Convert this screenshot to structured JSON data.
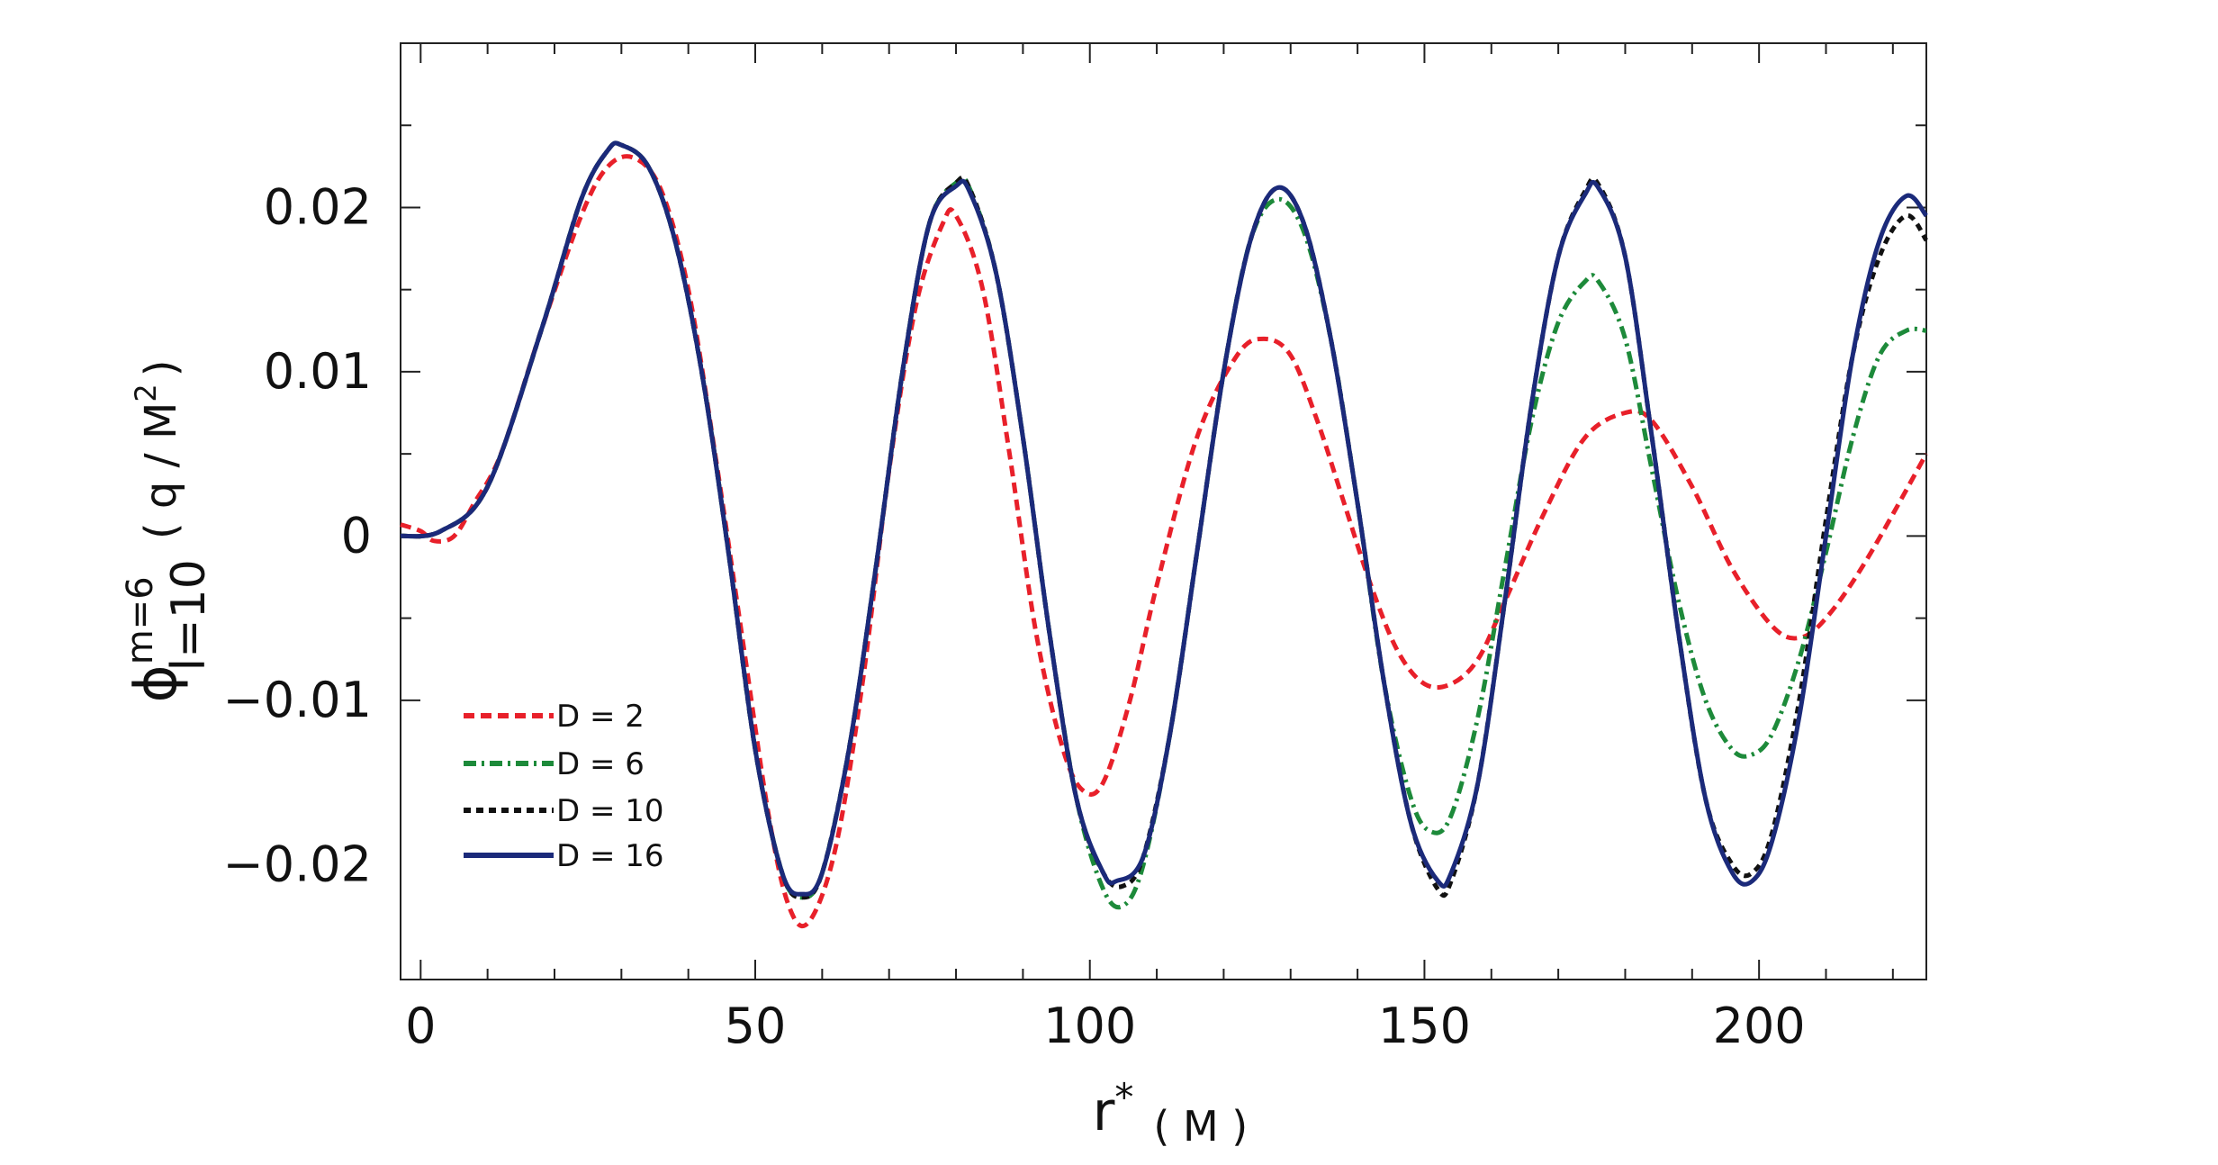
{
  "chart_data": {
    "type": "line",
    "xlim": [
      -3,
      225
    ],
    "ylim": [
      -0.027,
      0.03
    ],
    "x_ticks": [
      0,
      50,
      100,
      150,
      200
    ],
    "x_tick_labels": [
      "0",
      "50",
      "100",
      "150",
      "200"
    ],
    "y_ticks": [
      0.02,
      0.01,
      0,
      -0.01,
      -0.02
    ],
    "y_tick_labels": [
      "0.02",
      "0.01",
      "0",
      "−0.01",
      "−0.02"
    ],
    "xlabel": {
      "main": "r",
      "sup": "*",
      "unit": "( M )"
    },
    "ylabel": {
      "symbol": "ϕ",
      "sup": "m=6",
      "sub": "l=10",
      "unit": "( q / M",
      "unit_sup": "2",
      "unit_close": ")"
    },
    "grid": false,
    "legend": "bottom-left",
    "series": [
      {
        "name": "D = 2",
        "color": "#e8202a",
        "style": "dashed",
        "points": [
          [
            -3,
            0.0007
          ],
          [
            0,
            0.0003
          ],
          [
            2,
            -0.0003
          ],
          [
            5,
            0.0
          ],
          [
            8,
            0.002
          ],
          [
            12,
            0.005
          ],
          [
            18,
            0.0125
          ],
          [
            24,
            0.0195
          ],
          [
            28,
            0.0225
          ],
          [
            32,
            0.023
          ],
          [
            36,
            0.021
          ],
          [
            40,
            0.015
          ],
          [
            44,
            0.005
          ],
          [
            48,
            -0.006
          ],
          [
            52,
            -0.017
          ],
          [
            55,
            -0.0225
          ],
          [
            58,
            -0.0235
          ],
          [
            62,
            -0.019
          ],
          [
            66,
            -0.009
          ],
          [
            70,
            0.004
          ],
          [
            74,
            0.014
          ],
          [
            78,
            0.019
          ],
          [
            80,
            0.0195
          ],
          [
            84,
            0.015
          ],
          [
            88,
            0.005
          ],
          [
            92,
            -0.006
          ],
          [
            96,
            -0.013
          ],
          [
            99,
            -0.0155
          ],
          [
            102,
            -0.015
          ],
          [
            106,
            -0.01
          ],
          [
            110,
            -0.003
          ],
          [
            116,
            0.006
          ],
          [
            122,
            0.011
          ],
          [
            126,
            0.012
          ],
          [
            130,
            0.011
          ],
          [
            134,
            0.007
          ],
          [
            138,
            0.002
          ],
          [
            142,
            -0.003
          ],
          [
            146,
            -0.007
          ],
          [
            150,
            -0.009
          ],
          [
            154,
            -0.009
          ],
          [
            158,
            -0.0075
          ],
          [
            162,
            -0.004
          ],
          [
            168,
            0.0015
          ],
          [
            174,
            0.006
          ],
          [
            180,
            0.0075
          ],
          [
            184,
            0.007
          ],
          [
            190,
            0.003
          ],
          [
            196,
            -0.002
          ],
          [
            202,
            -0.0055
          ],
          [
            206,
            -0.0062
          ],
          [
            210,
            -0.005
          ],
          [
            216,
            -0.0015
          ],
          [
            225,
            0.005
          ]
        ]
      },
      {
        "name": "D = 6",
        "color": "#1d8a3a",
        "style": "dashdot",
        "points": [
          [
            -3,
            0.0
          ],
          [
            3,
            0.0003
          ],
          [
            10,
            0.003
          ],
          [
            18,
            0.0125
          ],
          [
            24,
            0.0205
          ],
          [
            28,
            0.0235
          ],
          [
            30,
            0.0238
          ],
          [
            34,
            0.0225
          ],
          [
            38,
            0.018
          ],
          [
            42,
            0.01
          ],
          [
            46,
            -0.001
          ],
          [
            50,
            -0.013
          ],
          [
            54,
            -0.0205
          ],
          [
            57,
            -0.022
          ],
          [
            60,
            -0.0205
          ],
          [
            64,
            -0.013
          ],
          [
            68,
            -0.002
          ],
          [
            72,
            0.01
          ],
          [
            76,
            0.019
          ],
          [
            80,
            0.0215
          ],
          [
            82,
            0.0212
          ],
          [
            86,
            0.016
          ],
          [
            90,
            0.006
          ],
          [
            94,
            -0.006
          ],
          [
            98,
            -0.016
          ],
          [
            102,
            -0.0215
          ],
          [
            105,
            -0.0225
          ],
          [
            108,
            -0.02
          ],
          [
            112,
            -0.012
          ],
          [
            116,
            -0.001
          ],
          [
            120,
            0.01
          ],
          [
            124,
            0.018
          ],
          [
            128,
            0.0205
          ],
          [
            132,
            0.0185
          ],
          [
            136,
            0.012
          ],
          [
            140,
            0.002
          ],
          [
            144,
            -0.009
          ],
          [
            148,
            -0.016
          ],
          [
            151,
            -0.018
          ],
          [
            154,
            -0.017
          ],
          [
            158,
            -0.011
          ],
          [
            162,
            -0.002
          ],
          [
            166,
            0.007
          ],
          [
            170,
            0.013
          ],
          [
            174,
            0.0155
          ],
          [
            176,
            0.0155
          ],
          [
            180,
            0.012
          ],
          [
            184,
            0.004
          ],
          [
            188,
            -0.004
          ],
          [
            192,
            -0.01
          ],
          [
            196,
            -0.013
          ],
          [
            199,
            -0.0133
          ],
          [
            202,
            -0.012
          ],
          [
            206,
            -0.0075
          ],
          [
            210,
            -0.001
          ],
          [
            214,
            0.006
          ],
          [
            218,
            0.011
          ],
          [
            222,
            0.0125
          ],
          [
            225,
            0.0125
          ]
        ]
      },
      {
        "name": "D = 10",
        "color": "#111111",
        "style": "dotted",
        "points": [
          [
            -3,
            0.0
          ],
          [
            3,
            0.0003
          ],
          [
            10,
            0.003
          ],
          [
            18,
            0.0125
          ],
          [
            24,
            0.0205
          ],
          [
            28,
            0.0235
          ],
          [
            30,
            0.0238
          ],
          [
            34,
            0.0225
          ],
          [
            38,
            0.018
          ],
          [
            42,
            0.01
          ],
          [
            46,
            -0.001
          ],
          [
            50,
            -0.013
          ],
          [
            54,
            -0.0205
          ],
          [
            57,
            -0.022
          ],
          [
            60,
            -0.0205
          ],
          [
            64,
            -0.013
          ],
          [
            68,
            -0.002
          ],
          [
            72,
            0.01
          ],
          [
            76,
            0.019
          ],
          [
            80,
            0.0215
          ],
          [
            82,
            0.0212
          ],
          [
            86,
            0.016
          ],
          [
            90,
            0.006
          ],
          [
            94,
            -0.006
          ],
          [
            98,
            -0.016
          ],
          [
            102,
            -0.0205
          ],
          [
            105,
            -0.0213
          ],
          [
            108,
            -0.0195
          ],
          [
            112,
            -0.012
          ],
          [
            116,
            -0.001
          ],
          [
            120,
            0.01
          ],
          [
            124,
            0.018
          ],
          [
            128,
            0.0212
          ],
          [
            132,
            0.019
          ],
          [
            136,
            0.012
          ],
          [
            140,
            0.002
          ],
          [
            144,
            -0.009
          ],
          [
            148,
            -0.0175
          ],
          [
            152,
            -0.0215
          ],
          [
            154,
            -0.021
          ],
          [
            158,
            -0.015
          ],
          [
            162,
            -0.004
          ],
          [
            166,
            0.008
          ],
          [
            170,
            0.017
          ],
          [
            174,
            0.021
          ],
          [
            176,
            0.0214
          ],
          [
            180,
            0.017
          ],
          [
            184,
            0.006
          ],
          [
            188,
            -0.006
          ],
          [
            192,
            -0.016
          ],
          [
            196,
            -0.02
          ],
          [
            199,
            -0.0205
          ],
          [
            202,
            -0.018
          ],
          [
            206,
            -0.01
          ],
          [
            210,
            0.001
          ],
          [
            214,
            0.011
          ],
          [
            218,
            0.017
          ],
          [
            222,
            0.0195
          ],
          [
            225,
            0.018
          ]
        ]
      },
      {
        "name": "D = 16",
        "color": "#1b2a7a",
        "style": "solid",
        "points": [
          [
            -3,
            0.0
          ],
          [
            3,
            0.0003
          ],
          [
            10,
            0.003
          ],
          [
            18,
            0.0125
          ],
          [
            24,
            0.0205
          ],
          [
            28,
            0.0235
          ],
          [
            30,
            0.0238
          ],
          [
            34,
            0.0225
          ],
          [
            38,
            0.018
          ],
          [
            42,
            0.01
          ],
          [
            46,
            -0.001
          ],
          [
            50,
            -0.013
          ],
          [
            54,
            -0.0205
          ],
          [
            57,
            -0.0218
          ],
          [
            60,
            -0.0205
          ],
          [
            64,
            -0.013
          ],
          [
            68,
            -0.002
          ],
          [
            72,
            0.01
          ],
          [
            76,
            0.019
          ],
          [
            80,
            0.0213
          ],
          [
            82,
            0.021
          ],
          [
            86,
            0.016
          ],
          [
            90,
            0.006
          ],
          [
            94,
            -0.006
          ],
          [
            98,
            -0.016
          ],
          [
            102,
            -0.0205
          ],
          [
            104,
            -0.021
          ],
          [
            108,
            -0.0195
          ],
          [
            112,
            -0.012
          ],
          [
            116,
            -0.001
          ],
          [
            120,
            0.01
          ],
          [
            124,
            0.018
          ],
          [
            128,
            0.0212
          ],
          [
            132,
            0.019
          ],
          [
            136,
            0.012
          ],
          [
            140,
            0.002
          ],
          [
            144,
            -0.009
          ],
          [
            148,
            -0.0175
          ],
          [
            152,
            -0.021
          ],
          [
            154,
            -0.0205
          ],
          [
            158,
            -0.015
          ],
          [
            162,
            -0.004
          ],
          [
            166,
            0.008
          ],
          [
            170,
            0.017
          ],
          [
            174,
            0.0208
          ],
          [
            176,
            0.0212
          ],
          [
            180,
            0.017
          ],
          [
            184,
            0.006
          ],
          [
            188,
            -0.006
          ],
          [
            192,
            -0.016
          ],
          [
            196,
            -0.0205
          ],
          [
            199,
            -0.021
          ],
          [
            202,
            -0.0185
          ],
          [
            206,
            -0.011
          ],
          [
            210,
            0.0
          ],
          [
            214,
            0.011
          ],
          [
            218,
            0.018
          ],
          [
            222,
            0.0207
          ],
          [
            225,
            0.0195
          ]
        ]
      }
    ]
  }
}
